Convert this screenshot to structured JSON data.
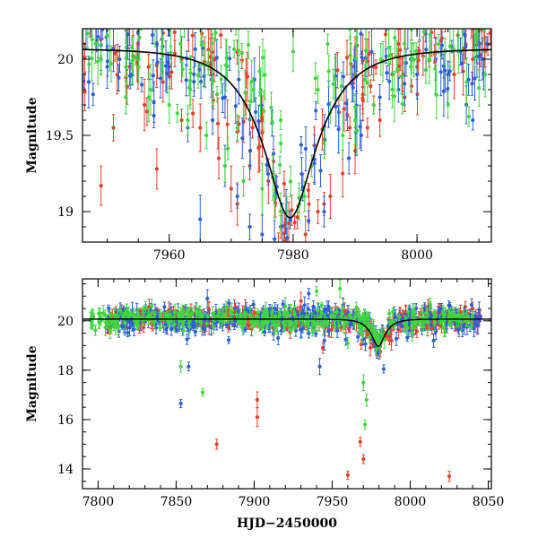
{
  "chart_data": [
    {
      "type": "scatter",
      "panel": "top",
      "title": "",
      "xlabel": "",
      "ylabel": "Magnitude",
      "xlim": [
        7946,
        8012
      ],
      "ylim": [
        20.2,
        18.8
      ],
      "y_inverted": true,
      "grid": false,
      "legend": "none",
      "xticks": [
        7960,
        7980,
        8000
      ],
      "yticks": [
        19,
        19.5,
        20
      ],
      "ytick_labels": [
        "19",
        "19.5",
        "20"
      ],
      "model_curve": {
        "t0": 7979.5,
        "baseline": 20.07,
        "peak": 18.96,
        "tE": 8.5
      },
      "series": [
        {
          "color": "#e8402a",
          "points": [
            [
              7949,
              19.17
            ],
            [
              7951,
              19.55
            ],
            [
              7953,
              19.88
            ],
            [
              7956,
              19.7
            ],
            [
              7958,
              19.28
            ],
            [
              7959,
              19.85
            ],
            [
              7962,
              19.6
            ],
            [
              7965,
              19.55
            ],
            [
              7968,
              19.35
            ],
            [
              7970,
              19.15
            ],
            [
              7971,
              19.05
            ],
            [
              7973,
              19.3
            ],
            [
              7976,
              19.2
            ],
            [
              7978,
              18.9
            ],
            [
              7982,
              18.85
            ],
            [
              7984,
              19.0
            ],
            [
              7985,
              19.05
            ],
            [
              7986,
              19.1
            ],
            [
              7988,
              19.25
            ],
            [
              7990,
              19.4
            ],
            [
              7992,
              19.55
            ],
            [
              7994,
              19.6
            ],
            [
              7996,
              19.9
            ],
            [
              7998,
              19.75
            ],
            [
              8000,
              19.95
            ],
            [
              8003,
              20.05
            ],
            [
              8006,
              19.9
            ],
            [
              8009,
              20.0
            ],
            [
              8011,
              20.05
            ],
            [
              7955,
              20.1
            ],
            [
              7962,
              20.0
            ],
            [
              7967,
              19.9
            ],
            [
              7975,
              19.6
            ],
            [
              7993,
              19.95
            ],
            [
              7997,
              20.1
            ]
          ]
        },
        {
          "color": "#2b5fd9",
          "points": [
            [
              7947,
              19.85
            ],
            [
              7950,
              19.95
            ],
            [
              7952,
              20.0
            ],
            [
              7954,
              19.9
            ],
            [
              7957,
              19.8
            ],
            [
              7960,
              19.95
            ],
            [
              7963,
              19.55
            ],
            [
              7965,
              18.95
            ],
            [
              7967,
              19.6
            ],
            [
              7969,
              19.3
            ],
            [
              7971,
              19.1
            ],
            [
              7973,
              18.9
            ],
            [
              7975,
              18.85
            ],
            [
              7977,
              18.82
            ],
            [
              7985,
              19.0
            ],
            [
              7989,
              19.35
            ],
            [
              7991,
              19.5
            ],
            [
              7994,
              19.75
            ],
            [
              7997,
              19.8
            ],
            [
              8000,
              19.9
            ],
            [
              8003,
              20.0
            ],
            [
              8007,
              20.05
            ],
            [
              8009,
              19.6
            ],
            [
              8010,
              20.1
            ],
            [
              7958,
              20.1
            ],
            [
              7964,
              19.9
            ],
            [
              7969,
              19.75
            ],
            [
              7999,
              20.0
            ],
            [
              8005,
              19.9
            ]
          ]
        },
        {
          "color": "#3fd63f",
          "points": [
            [
              7949,
              20.0
            ],
            [
              7953,
              19.95
            ],
            [
              7957,
              19.8
            ],
            [
              7960,
              19.7
            ],
            [
              7963,
              19.6
            ],
            [
              7966,
              19.5
            ],
            [
              7969,
              19.3
            ],
            [
              7972,
              19.2
            ],
            [
              7975,
              19.15
            ],
            [
              7977,
              19.1
            ],
            [
              7979,
              19.0
            ],
            [
              7981,
              19.05
            ],
            [
              7983,
              19.3
            ],
            [
              7985,
              19.45
            ],
            [
              7986,
              19.65
            ],
            [
              7988,
              19.5
            ],
            [
              7990,
              19.6
            ],
            [
              7993,
              19.7
            ],
            [
              7996,
              19.8
            ],
            [
              7999,
              19.95
            ],
            [
              8002,
              20.0
            ],
            [
              8005,
              19.7
            ],
            [
              8008,
              19.85
            ],
            [
              8011,
              19.9
            ],
            [
              7980,
              20.05
            ],
            [
              7984,
              19.8
            ],
            [
              7978,
              19.6
            ],
            [
              7971,
              19.55
            ],
            [
              7967,
              19.85
            ]
          ]
        }
      ]
    },
    {
      "type": "scatter",
      "panel": "bottom",
      "title": "",
      "xlabel": "HJD−2450000",
      "ylabel": "Magnitude",
      "xlim": [
        7790,
        8052
      ],
      "ylim": [
        21.7,
        13.2
      ],
      "y_inverted": true,
      "grid": false,
      "legend": "none",
      "xticks": [
        7800,
        7850,
        7900,
        7950,
        8000,
        8050
      ],
      "yticks": [
        14,
        16,
        18,
        20
      ],
      "ytick_labels": [
        "14",
        "16",
        "18",
        "20"
      ],
      "model_curve": {
        "t0": 7979.5,
        "baseline": 20.07,
        "peak": 18.96,
        "tE": 8.5
      },
      "outliers": [
        {
          "color": "#e8402a",
          "points": [
            [
              7960,
              13.75
            ],
            [
              8025,
              13.7
            ],
            [
              7968,
              15.1
            ],
            [
              7876,
              15.0
            ],
            [
              7902,
              16.1
            ],
            [
              7902,
              16.8
            ],
            [
              7970,
              14.4
            ],
            [
              7930,
              20.8
            ],
            [
              7988,
              19.2
            ],
            [
              7944,
              18.9
            ]
          ]
        },
        {
          "color": "#2b5fd9",
          "points": [
            [
              7853,
              16.65
            ],
            [
              7858,
              18.15
            ],
            [
              7857,
              19.25
            ],
            [
              7942,
              18.15
            ],
            [
              7945,
              19.2
            ],
            [
              7983,
              18.05
            ],
            [
              8015,
              19.2
            ],
            [
              7870,
              20.9
            ],
            [
              7935,
              21.1
            ]
          ]
        },
        {
          "color": "#3fd63f",
          "points": [
            [
              7867,
              17.1
            ],
            [
              7853,
              18.15
            ],
            [
              7971,
              15.8
            ],
            [
              7972,
              16.8
            ],
            [
              7970,
              17.5
            ],
            [
              7960,
              19.1
            ],
            [
              7940,
              21.2
            ],
            [
              7955,
              21.3
            ]
          ]
        }
      ],
      "series": [
        {
          "color": "#e8402a",
          "x_range": [
            7805,
            8045
          ],
          "mag_scatter": 0.35
        },
        {
          "color": "#2b5fd9",
          "x_range": [
            7805,
            8045
          ],
          "mag_scatter": 0.45
        },
        {
          "color": "#3fd63f",
          "x_range": [
            7795,
            8040
          ],
          "mag_scatter": 0.35
        }
      ]
    }
  ]
}
